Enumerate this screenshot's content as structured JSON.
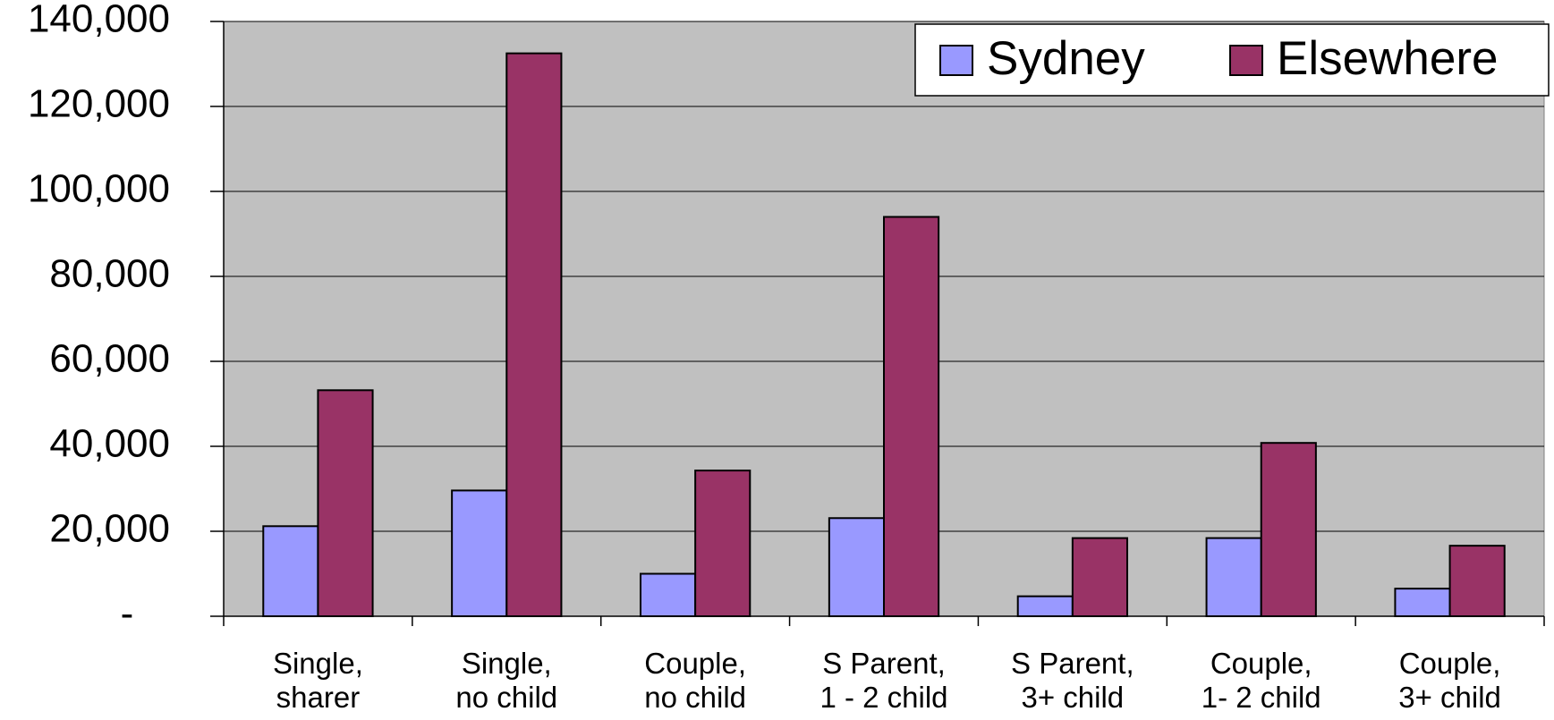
{
  "chart_data": {
    "type": "bar",
    "categories": [
      "Single,\nsharer",
      "Single,\nno child",
      "Couple,\nno child",
      "S Parent,\n1 - 2 child",
      "S Parent,\n3+ child",
      "Couple,\n1- 2 child",
      "Couple,\n3+ child"
    ],
    "series": [
      {
        "name": "Sydney",
        "color": "#9999ff",
        "values": [
          21200,
          29600,
          10000,
          23100,
          4700,
          18400,
          6500
        ]
      },
      {
        "name": "Elsewhere",
        "color": "#993366",
        "values": [
          53200,
          132500,
          34300,
          94000,
          18400,
          40800,
          16600
        ]
      }
    ],
    "ylim": [
      0,
      140000
    ],
    "yticks": [
      {
        "value": 0,
        "label": "-"
      },
      {
        "value": 20000,
        "label": "20,000"
      },
      {
        "value": 40000,
        "label": "40,000"
      },
      {
        "value": 60000,
        "label": "60,000"
      },
      {
        "value": 80000,
        "label": "80,000"
      },
      {
        "value": 100000,
        "label": "100,000"
      },
      {
        "value": 120000,
        "label": "120,000"
      },
      {
        "value": 140000,
        "label": "140,000"
      }
    ],
    "grid": true,
    "legend": "top-right",
    "plot_background": "#c0c0c0"
  }
}
